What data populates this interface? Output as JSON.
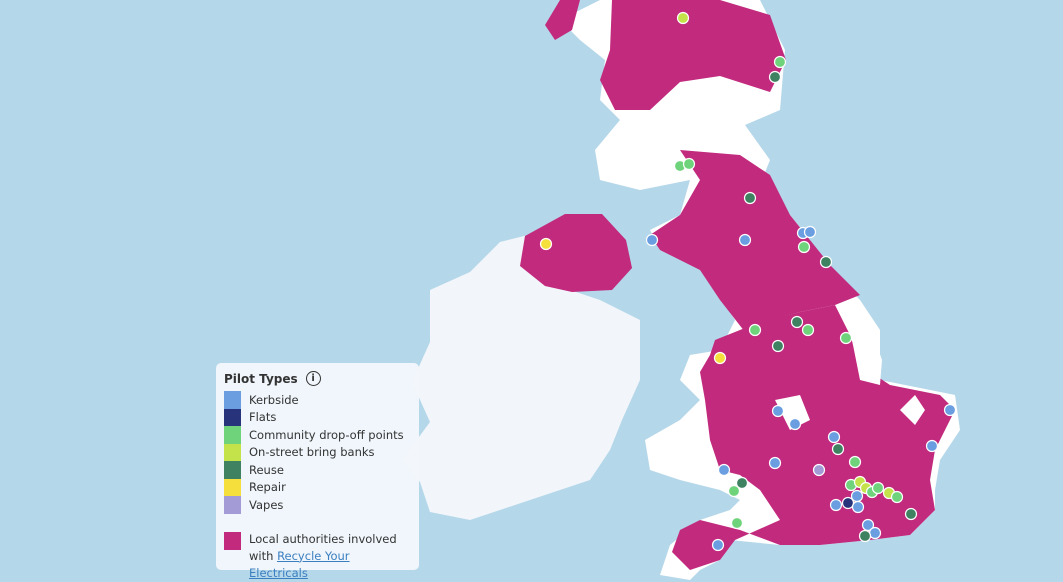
{
  "colors": {
    "sea": "#b5d7ea",
    "land": "#ffffff",
    "ireland": "#f2f6fa",
    "authority": "#c22a7e"
  },
  "legend": {
    "title": "Pilot Types",
    "info_icon": "info-icon",
    "items": [
      {
        "label": "Kerbside",
        "color": "#6a9ee0"
      },
      {
        "label": "Flats",
        "color": "#27337a"
      },
      {
        "label": "Community drop-off points",
        "color": "#6fd37c"
      },
      {
        "label": "On-street bring banks",
        "color": "#c4e24a"
      },
      {
        "label": "Reuse",
        "color": "#3f8261"
      },
      {
        "label": "Repair",
        "color": "#f5df3c"
      },
      {
        "label": "Vapes",
        "color": "#a39bd6"
      }
    ],
    "authorities_label": "Local authorities involved with",
    "authorities_link": "Recycle Your Electricals",
    "authorities_color": "#c22a7e"
  }
}
